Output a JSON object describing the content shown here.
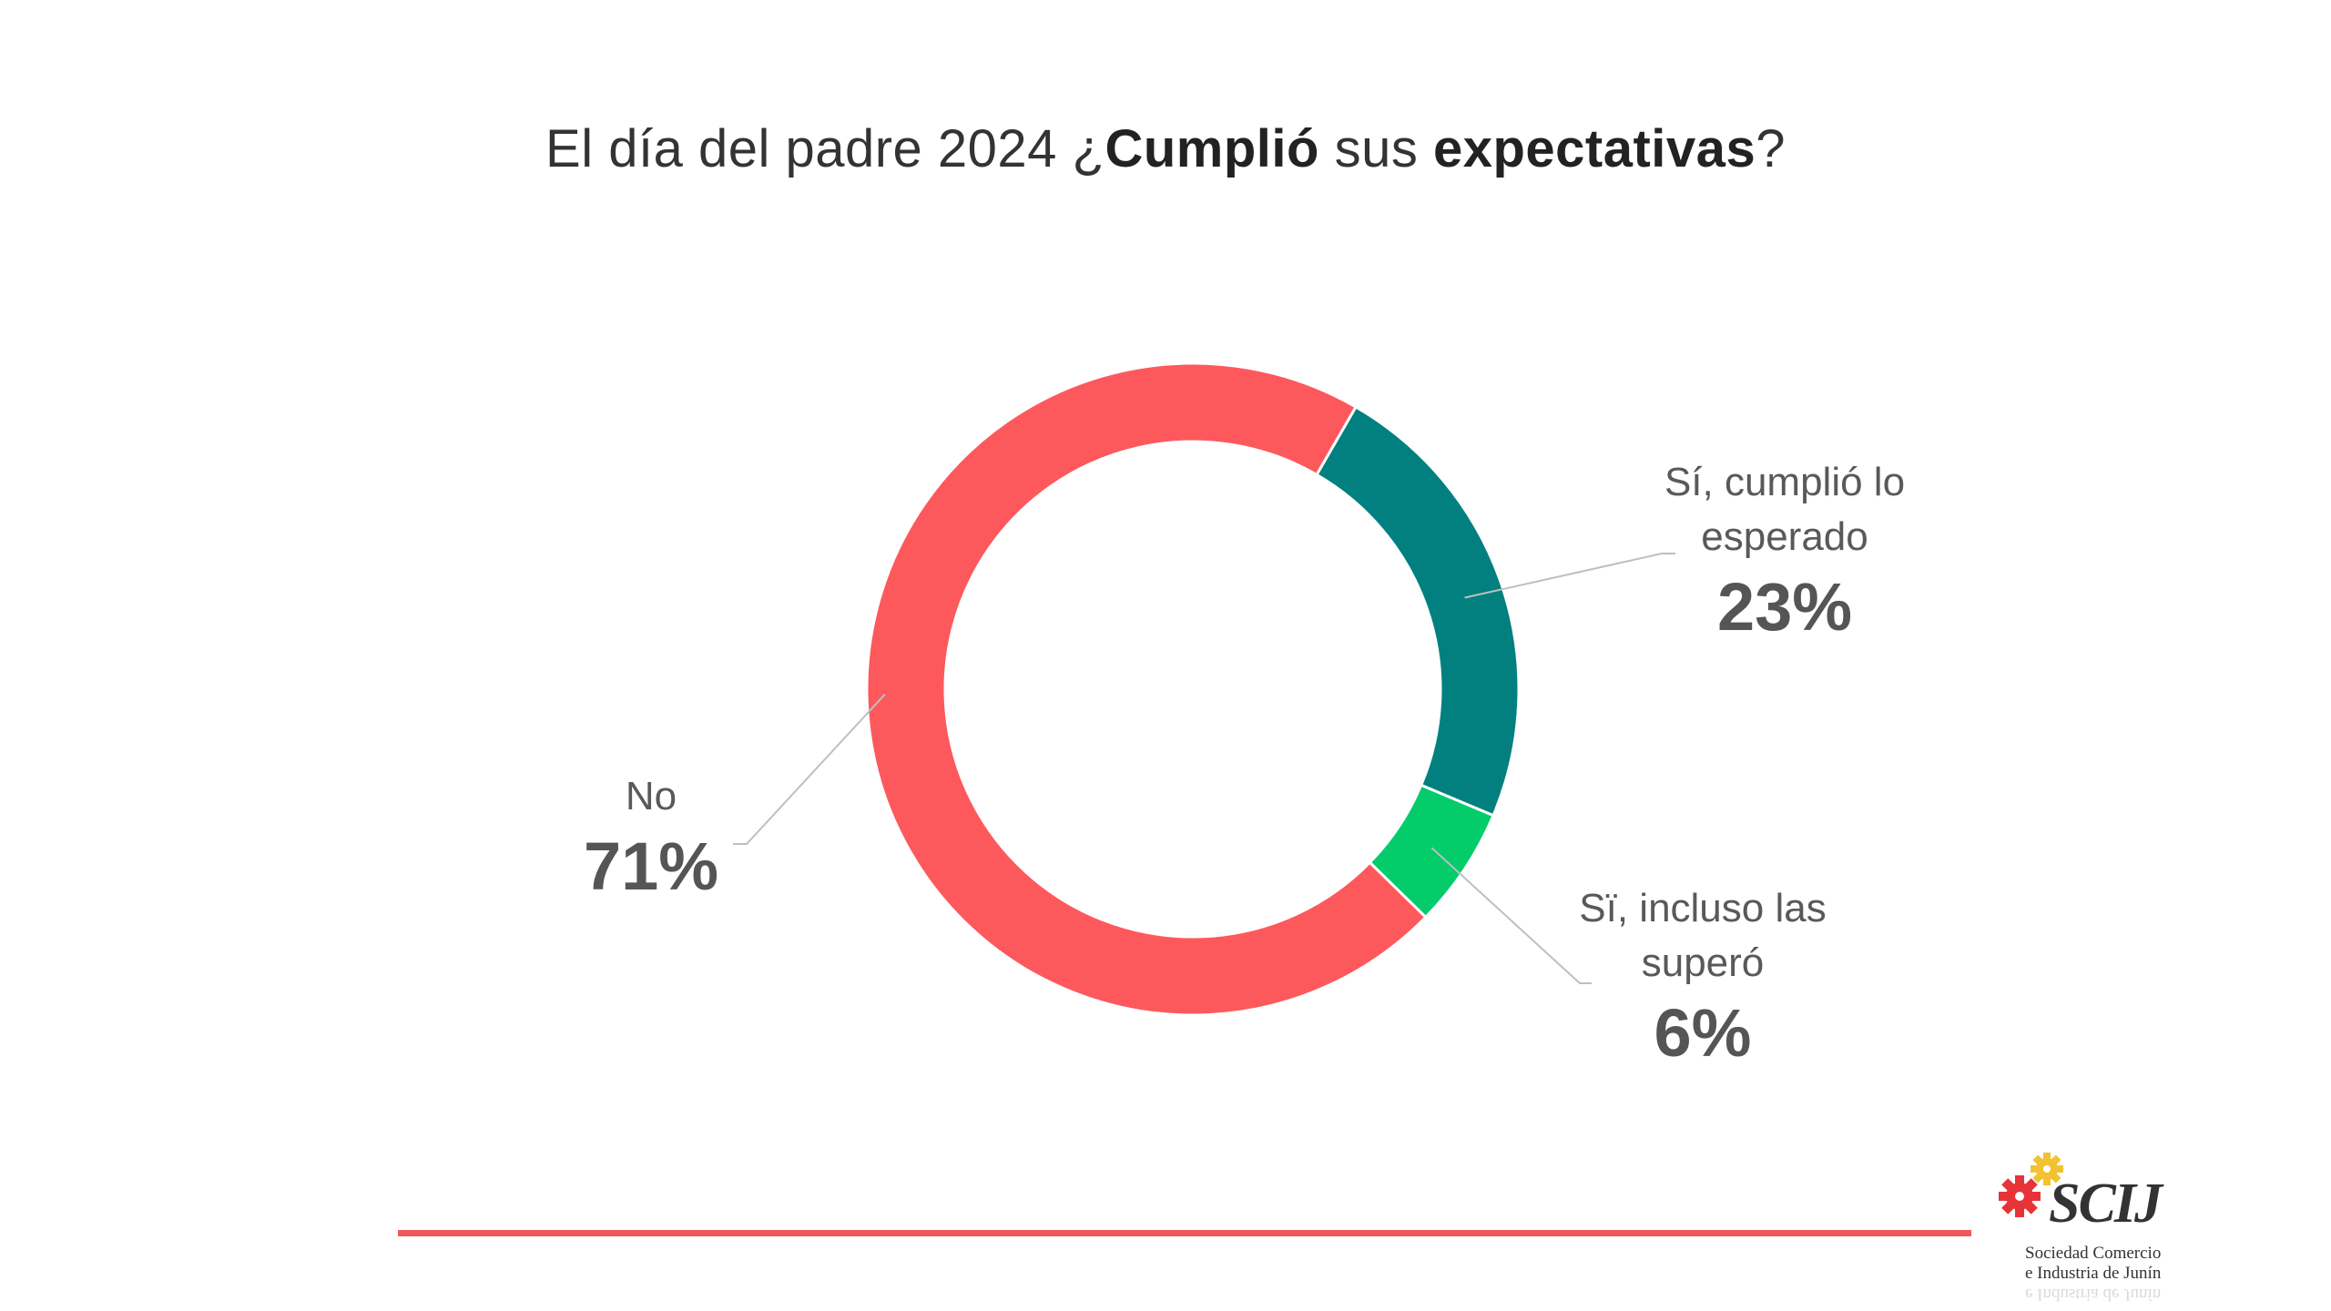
{
  "chart_data": {
    "type": "pie",
    "title_parts": [
      {
        "text": "El día del padre 2024 ¿",
        "bold": false
      },
      {
        "text": "Cumplió",
        "bold": true
      },
      {
        "text": " sus ",
        "bold": false
      },
      {
        "text": "expectativas",
        "bold": true
      },
      {
        "text": "?",
        "bold": false
      }
    ],
    "slices": [
      {
        "label": "Sí, cumplió lo esperado",
        "value": 23,
        "value_label": "23%",
        "color": "#028080"
      },
      {
        "label": "Sï, incluso las superó",
        "value": 6,
        "value_label": "6%",
        "color": "#04cc6b"
      },
      {
        "label": "No",
        "value": 71,
        "value_label": "71%",
        "color": "#fd595c"
      }
    ],
    "donut": true,
    "start": "top-right, clockwise",
    "legend": "callout labels"
  },
  "labels": {
    "si_cumplio_line1": "Sí, cumplió lo",
    "si_cumplio_line2": "esperado",
    "si_incluso_line1": "Sï, incluso las",
    "si_incluso_line2": "superó"
  },
  "logo": {
    "text": "SCIJ",
    "sub_line1": "Sociedad  Comercio",
    "sub_line2": "e  Industria de Junín",
    "colors": {
      "red_gear": "#e63338",
      "yellow_gear": "#f2c230"
    }
  },
  "footer_line_color": "#f0585d"
}
